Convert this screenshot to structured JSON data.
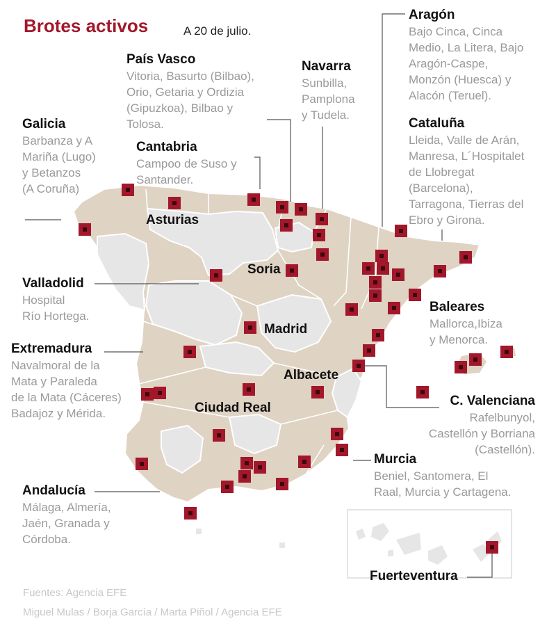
{
  "header": {
    "title": "Brotes activos",
    "date": "A 20 de julio."
  },
  "regions": {
    "aragon": {
      "name": "Aragón",
      "desc": [
        "Bajo Cinca, Cinca",
        "Medio, La Litera, Bajo",
        "Aragón-Caspe,",
        "Monzón (Huesca) y",
        "Alacón (Teruel)."
      ]
    },
    "pais_vasco": {
      "name": "País Vasco",
      "desc": [
        "Vitoria, Basurto (Bilbao),",
        "Orio, Getaria y Ordizia",
        "(Gipuzkoa), Bilbao y",
        "Tolosa."
      ]
    },
    "navarra": {
      "name": "Navarra",
      "desc": [
        "Sunbilla,",
        "Pamplona",
        "y Tudela."
      ]
    },
    "galicia": {
      "name": "Galicia",
      "desc": [
        "Barbanza y A",
        "Mariña (Lugo)",
        "y Betanzos",
        "(A Coruña)"
      ]
    },
    "cantabria": {
      "name": "Cantabria",
      "desc": [
        "Campoo de Suso y",
        "Santander."
      ]
    },
    "cataluna": {
      "name": "Cataluña",
      "desc": [
        "Lleida, Valle de Arán,",
        "Manresa, L´Hospitalet",
        "de Llobregat",
        "(Barcelona),",
        "Tarragona, Tierras del",
        "Ebro y Girona."
      ]
    },
    "valladolid": {
      "name": "Valladolid",
      "desc": [
        "Hospital",
        "Río Hortega."
      ]
    },
    "baleares": {
      "name": "Baleares",
      "desc": [
        "Mallorca,Ibiza",
        "y Menorca."
      ]
    },
    "extremadura": {
      "name": "Extremadura",
      "desc": [
        "Navalmoral de la",
        "Mata y Paraleda",
        "de la Mata (Cáceres)",
        "Badajoz y Mérida."
      ]
    },
    "valenciana": {
      "name": "C. Valenciana",
      "desc": [
        "Rafelbunyol,",
        "Castellón y Borriana",
        "(Castellón)."
      ]
    },
    "murcia": {
      "name": "Murcia",
      "desc": [
        "Beniel, Santomera, El",
        "Raal, Murcia y Cartagena."
      ]
    },
    "andalucia": {
      "name": "Andalucía",
      "desc": [
        "Málaga, Almería,",
        "Jaén, Granada y",
        "Córdoba."
      ]
    },
    "fuerteventura": {
      "name": "Fuerteventura"
    }
  },
  "map_labels": {
    "asturias": "Asturias",
    "soria": "Soria",
    "madrid": "Madrid",
    "albacete": "Albacete",
    "ciudad_real": "Ciudad Real"
  },
  "colors": {
    "accent": "#a3172b",
    "affected": "#dfd3c4",
    "unaffected": "#e6e6e6",
    "marker": "#a3172b"
  },
  "footer": {
    "source": "Fuentes: Agencia EFE",
    "credits": "Miguel Mulas / Borja García / Marta Piñol / Agencia EFE"
  }
}
